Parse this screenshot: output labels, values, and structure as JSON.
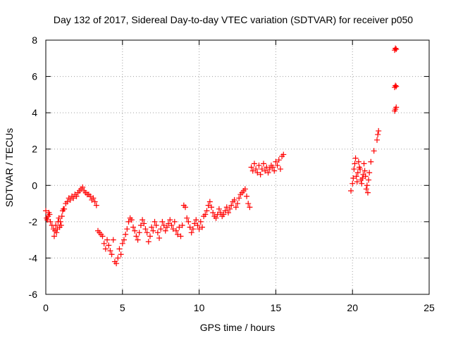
{
  "chart_data": {
    "type": "scatter",
    "title": "Day 132 of 2017, Sidereal Day-to-day VTEC variation (SDTVAR) for receiver p050",
    "xlabel": "GPS time / hours",
    "ylabel": "SDTVAR / TECUs",
    "xlim": [
      0,
      25
    ],
    "ylim": [
      -6,
      8
    ],
    "xticks": [
      0,
      5,
      10,
      15,
      20,
      25
    ],
    "yticks": [
      -6,
      -4,
      -2,
      0,
      2,
      4,
      6,
      8
    ],
    "grid": true,
    "marker": "+",
    "color": "#ff0000",
    "series": [
      {
        "x": [
          0.0,
          0.05,
          0.1,
          0.15,
          0.2,
          0.25,
          0.3,
          0.4,
          0.5,
          0.55,
          0.6,
          0.65,
          0.7,
          0.75,
          0.8,
          0.85,
          0.9,
          0.95,
          1.0,
          1.05,
          1.1,
          1.15,
          1.2,
          1.3,
          1.4,
          1.5,
          1.6,
          1.7,
          1.8,
          1.9,
          2.0,
          2.1,
          2.2,
          2.3,
          2.4,
          2.5,
          2.6,
          2.7,
          2.8,
          2.9,
          3.0,
          3.1,
          3.2,
          3.3,
          3.4,
          3.5,
          3.6,
          3.7,
          3.8,
          3.9,
          4.0,
          4.1,
          4.2,
          4.3,
          4.4,
          4.5,
          4.6,
          4.7,
          4.8,
          4.9,
          5.0,
          5.1,
          5.2,
          5.3,
          5.4,
          5.5,
          5.6,
          5.7,
          5.8,
          5.9,
          6.0,
          6.1,
          6.2,
          6.3,
          6.4,
          6.5,
          6.6,
          6.7,
          6.8,
          6.9,
          7.0,
          7.1,
          7.2,
          7.3,
          7.4,
          7.5,
          7.6,
          7.7,
          7.8,
          7.9,
          8.0,
          8.1,
          8.2,
          8.3,
          8.4,
          8.5,
          8.6,
          8.7,
          8.8,
          8.9,
          9.0,
          9.1,
          9.2,
          9.3,
          9.4,
          9.5,
          9.6,
          9.7,
          9.8,
          9.9,
          10.0,
          10.1,
          10.2,
          10.3,
          10.4,
          10.5,
          10.6,
          10.7,
          10.8,
          10.9,
          11.0,
          11.1,
          11.2,
          11.3,
          11.4,
          11.5,
          11.6,
          11.7,
          11.8,
          11.9,
          12.0,
          12.1,
          12.2,
          12.3,
          12.4,
          12.5,
          12.6,
          12.7,
          12.8,
          12.9,
          13.0,
          13.1,
          13.2,
          13.3,
          13.4,
          13.5,
          13.6,
          13.7,
          13.8,
          13.9,
          14.0,
          14.1,
          14.2,
          14.3,
          14.4,
          14.5,
          14.6,
          14.7,
          14.8,
          14.9,
          15.0,
          15.1,
          15.2,
          15.3,
          15.4,
          15.5,
          19.9,
          20.0,
          20.05,
          20.1,
          20.15,
          20.2,
          20.25,
          20.3,
          20.35,
          20.4,
          20.45,
          20.5,
          20.55,
          20.6,
          20.65,
          20.7,
          20.75,
          20.8,
          20.85,
          20.9,
          20.95,
          21.0,
          21.05,
          21.1,
          21.2,
          21.4,
          21.6,
          21.65,
          21.7,
          22.75,
          22.8,
          22.85,
          22.75,
          22.8,
          22.85,
          22.75,
          22.8,
          22.85
        ],
        "y": [
          -1.4,
          -1.8,
          -1.9,
          -1.7,
          -1.5,
          -1.6,
          -2.0,
          -2.2,
          -2.4,
          -2.8,
          -2.5,
          -2.2,
          -2.6,
          -2.4,
          -2.0,
          -1.8,
          -2.3,
          -2.0,
          -2.2,
          -1.7,
          -1.4,
          -1.3,
          -1.3,
          -1.0,
          -0.9,
          -0.7,
          -0.8,
          -0.6,
          -0.7,
          -0.5,
          -0.6,
          -0.4,
          -0.3,
          -0.2,
          -0.1,
          -0.3,
          -0.4,
          -0.5,
          -0.5,
          -0.6,
          -0.8,
          -0.7,
          -0.9,
          -1.1,
          -2.5,
          -2.6,
          -2.7,
          -2.8,
          -3.2,
          -3.5,
          -3.0,
          -3.3,
          -3.6,
          -3.8,
          -3.0,
          -4.2,
          -4.3,
          -4.0,
          -3.5,
          -3.8,
          -3.2,
          -3.0,
          -2.7,
          -2.4,
          -2.0,
          -1.8,
          -1.9,
          -2.3,
          -2.5,
          -2.8,
          -3.0,
          -2.6,
          -2.2,
          -1.9,
          -2.1,
          -2.4,
          -2.6,
          -3.1,
          -2.8,
          -2.3,
          -2.5,
          -2.0,
          -2.2,
          -2.6,
          -2.9,
          -2.4,
          -2.0,
          -2.2,
          -2.5,
          -2.3,
          -2.1,
          -1.9,
          -2.2,
          -2.4,
          -2.0,
          -2.5,
          -2.7,
          -2.3,
          -2.8,
          -2.2,
          -1.1,
          -1.2,
          -1.8,
          -2.0,
          -2.3,
          -2.6,
          -2.4,
          -2.1,
          -1.9,
          -2.2,
          -2.4,
          -2.0,
          -2.3,
          -1.7,
          -1.6,
          -1.4,
          -1.1,
          -0.9,
          -1.2,
          -1.5,
          -1.7,
          -1.8,
          -1.6,
          -1.3,
          -1.5,
          -1.7,
          -1.6,
          -1.4,
          -1.2,
          -1.5,
          -1.3,
          -1.1,
          -0.9,
          -0.8,
          -1.2,
          -1.0,
          -0.7,
          -0.5,
          -0.4,
          -0.3,
          -0.2,
          -0.6,
          -1.0,
          -1.2,
          1.0,
          0.8,
          1.2,
          0.9,
          0.7,
          1.1,
          0.6,
          0.9,
          1.2,
          0.8,
          1.0,
          0.7,
          0.9,
          1.1,
          1.0,
          0.8,
          1.3,
          1.1,
          1.4,
          0.9,
          1.6,
          1.7,
          -0.3,
          0.1,
          0.4,
          0.9,
          1.2,
          1.5,
          0.5,
          0.2,
          0.7,
          1.3,
          1.0,
          0.9,
          0.3,
          0.1,
          0.4,
          0.6,
          1.2,
          0.8,
          0.5,
          -0.2,
          0.0,
          -0.4,
          0.3,
          0.7,
          1.3,
          1.9,
          2.5,
          2.8,
          3.0,
          4.1,
          4.2,
          4.3,
          5.4,
          5.5,
          5.45,
          7.45,
          7.55,
          7.5
        ]
      }
    ]
  }
}
